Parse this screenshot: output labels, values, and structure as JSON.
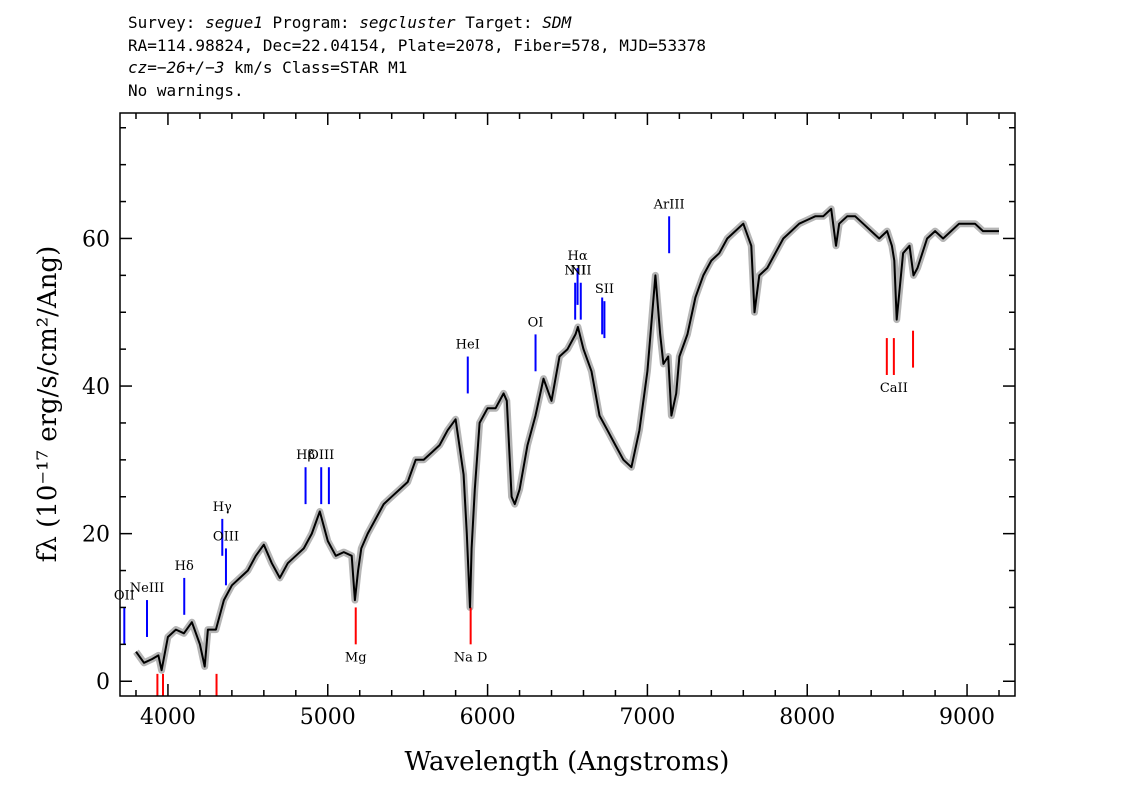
{
  "header": {
    "line1": {
      "survey_label": "Survey:",
      "survey": "segue1",
      "program_label": "Program:",
      "program": "segcluster",
      "target_label": "Target:",
      "target": "SDM"
    },
    "line2": "RA=114.98824, Dec=22.04154, Plate=2078, Fiber=578, MJD=53378",
    "line3": {
      "cz": "cz",
      "cz_value": "=−26+/−3",
      "rest": " km/s Class=STAR M1"
    },
    "line4": "No warnings."
  },
  "chart_data": {
    "type": "line",
    "xlabel": "Wavelength (Angstroms)",
    "ylabel": "fλ (10⁻¹⁷ erg/s/cm²/Ang)",
    "xlim": [
      3700,
      9300
    ],
    "ylim": [
      -2,
      77
    ],
    "x_ticks": [
      4000,
      5000,
      6000,
      7000,
      8000,
      9000
    ],
    "y_ticks": [
      0,
      20,
      40,
      60
    ],
    "grid": false,
    "colors": {
      "spectrum": "#000000",
      "error": "#b5b5b5",
      "emission": "#0000ff",
      "absorption": "#ff0000"
    },
    "series": [
      {
        "x": [
          3800,
          3850,
          3900,
          3940,
          3960,
          4000,
          4050,
          4100,
          4150,
          4200,
          4230,
          4250,
          4300,
          4350,
          4400,
          4450,
          4500,
          4550,
          4600,
          4650,
          4700,
          4750,
          4800,
          4850,
          4900,
          4950,
          5000,
          5050,
          5100,
          5150,
          5170,
          5190,
          5210,
          5250,
          5300,
          5350,
          5400,
          5450,
          5500,
          5550,
          5600,
          5650,
          5700,
          5750,
          5800,
          5850,
          5870,
          5890,
          5900,
          5920,
          5950,
          6000,
          6050,
          6100,
          6120,
          6150,
          6170,
          6200,
          6250,
          6300,
          6350,
          6400,
          6450,
          6500,
          6550,
          6565,
          6600,
          6650,
          6700,
          6750,
          6800,
          6850,
          6900,
          6950,
          7000,
          7050,
          7080,
          7100,
          7130,
          7150,
          7180,
          7200,
          7250,
          7300,
          7350,
          7400,
          7450,
          7500,
          7550,
          7600,
          7650,
          7670,
          7700,
          7750,
          7800,
          7850,
          7900,
          7950,
          8000,
          8050,
          8100,
          8150,
          8180,
          8200,
          8250,
          8300,
          8350,
          8400,
          8450,
          8500,
          8530,
          8545,
          8560,
          8600,
          8640,
          8665,
          8690,
          8750,
          8800,
          8850,
          8900,
          8950,
          9000,
          9050,
          9100,
          9150,
          9200
        ],
        "y": [
          4,
          2.5,
          3,
          3.5,
          1.5,
          6,
          7,
          6.5,
          8,
          5,
          2,
          7,
          7,
          11,
          13,
          14,
          15,
          17,
          18.5,
          16,
          14,
          16,
          17,
          18,
          20,
          23,
          19,
          17,
          17.5,
          17,
          11,
          15,
          18,
          20,
          22,
          24,
          25,
          26,
          27,
          30,
          30,
          31,
          32,
          34,
          35.5,
          28,
          20,
          10,
          18,
          26,
          35,
          37,
          37,
          39,
          38,
          25,
          24,
          26,
          32,
          36,
          41,
          38,
          44,
          45,
          47,
          48,
          45,
          42,
          36,
          34,
          32,
          30,
          29,
          34,
          42,
          55,
          47,
          43,
          44,
          36,
          39,
          44,
          47,
          52,
          55,
          57,
          58,
          60,
          61,
          62,
          59,
          50,
          55,
          56,
          58,
          60,
          61,
          62,
          62.5,
          63,
          63,
          64,
          59,
          62,
          63,
          63,
          62,
          61,
          60,
          61,
          59,
          57,
          49,
          58,
          59,
          55,
          56,
          60,
          61,
          60,
          61,
          62,
          62,
          62,
          61,
          61,
          61
        ]
      }
    ],
    "emission_lines": [
      {
        "label": "OII",
        "x": 3727,
        "y": 5,
        "len": 5
      },
      {
        "label": "NeIII",
        "x": 3869,
        "y": 6,
        "len": 5
      },
      {
        "label": "Hδ",
        "x": 4102,
        "y": 9,
        "len": 5
      },
      {
        "label": "Hγ",
        "x": 4340,
        "y": 17,
        "len": 5
      },
      {
        "label": "OIII",
        "x": 4363,
        "y": 13,
        "len": 5
      },
      {
        "label": "Hβ",
        "x": 4861,
        "y": 24,
        "len": 5
      },
      {
        "label": "OIII",
        "x": 4959,
        "y": 24,
        "len": 5
      },
      {
        "label": "",
        "x": 5007,
        "y": 24,
        "len": 5
      },
      {
        "label": "HeI",
        "x": 5876,
        "y": 39,
        "len": 5
      },
      {
        "label": "OI",
        "x": 6300,
        "y": 42,
        "len": 5
      },
      {
        "label": "NII",
        "x": 6548,
        "y": 49,
        "len": 5
      },
      {
        "label": "Hα",
        "x": 6563,
        "y": 51,
        "len": 5
      },
      {
        "label": "NII",
        "x": 6583,
        "y": 49,
        "len": 5
      },
      {
        "label": "",
        "x": 6717,
        "y": 47,
        "len": 5
      },
      {
        "label": "SII",
        "x": 6731,
        "y": 46.5,
        "len": 5
      },
      {
        "label": "ArIII",
        "x": 7136,
        "y": 58,
        "len": 5
      }
    ],
    "absorption_lines": [
      {
        "label": "",
        "x": 3934,
        "y": -2,
        "len": 3
      },
      {
        "label": "",
        "x": 3969,
        "y": -2,
        "len": 3
      },
      {
        "label": "",
        "x": 4304,
        "y": -2,
        "len": 3
      },
      {
        "label": "Mg",
        "x": 5175,
        "y": 5,
        "len": 5
      },
      {
        "label": "Na D",
        "x": 5894,
        "y": 5,
        "len": 5
      },
      {
        "label": "",
        "x": 8498,
        "y": 41.5,
        "len": 5
      },
      {
        "label": "CaII",
        "x": 8542,
        "y": 41.5,
        "len": 5
      },
      {
        "label": "",
        "x": 8662,
        "y": 42.5,
        "len": 5
      }
    ]
  }
}
